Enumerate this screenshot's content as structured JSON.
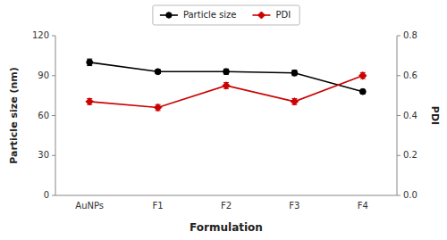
{
  "chart_data": {
    "type": "line",
    "xlabel": "Formulation",
    "ylabel": "Particle size (nm)",
    "y2label": "PDI",
    "categories": [
      "AuNPs",
      "F1",
      "F2",
      "F3",
      "F4"
    ],
    "series": [
      {
        "name": "Particle size",
        "color": "#000000",
        "marker": "circle",
        "line_style": "solid",
        "values": [
          100,
          93,
          93,
          92,
          78
        ],
        "errors": [
          2.5,
          1.5,
          2.0,
          2.0,
          1.5
        ]
      },
      {
        "name": "PDI",
        "color": "#cc0000",
        "marker": "diamond",
        "line_style": "solid",
        "axis": "y2",
        "values": [
          0.47,
          0.44,
          0.55,
          0.47,
          0.6
        ],
        "errors": [
          0.015,
          0.015,
          0.015,
          0.015,
          0.015
        ]
      }
    ],
    "ylim": [
      0,
      120
    ],
    "yticks": [
      0,
      30,
      60,
      90,
      120
    ],
    "y2lim": [
      0.0,
      0.8
    ],
    "y2ticks": [
      {
        "value": 0.0,
        "label": "0.0"
      },
      0.2,
      0.4,
      0.6,
      0.8
    ],
    "grid": false,
    "legend": "top"
  }
}
